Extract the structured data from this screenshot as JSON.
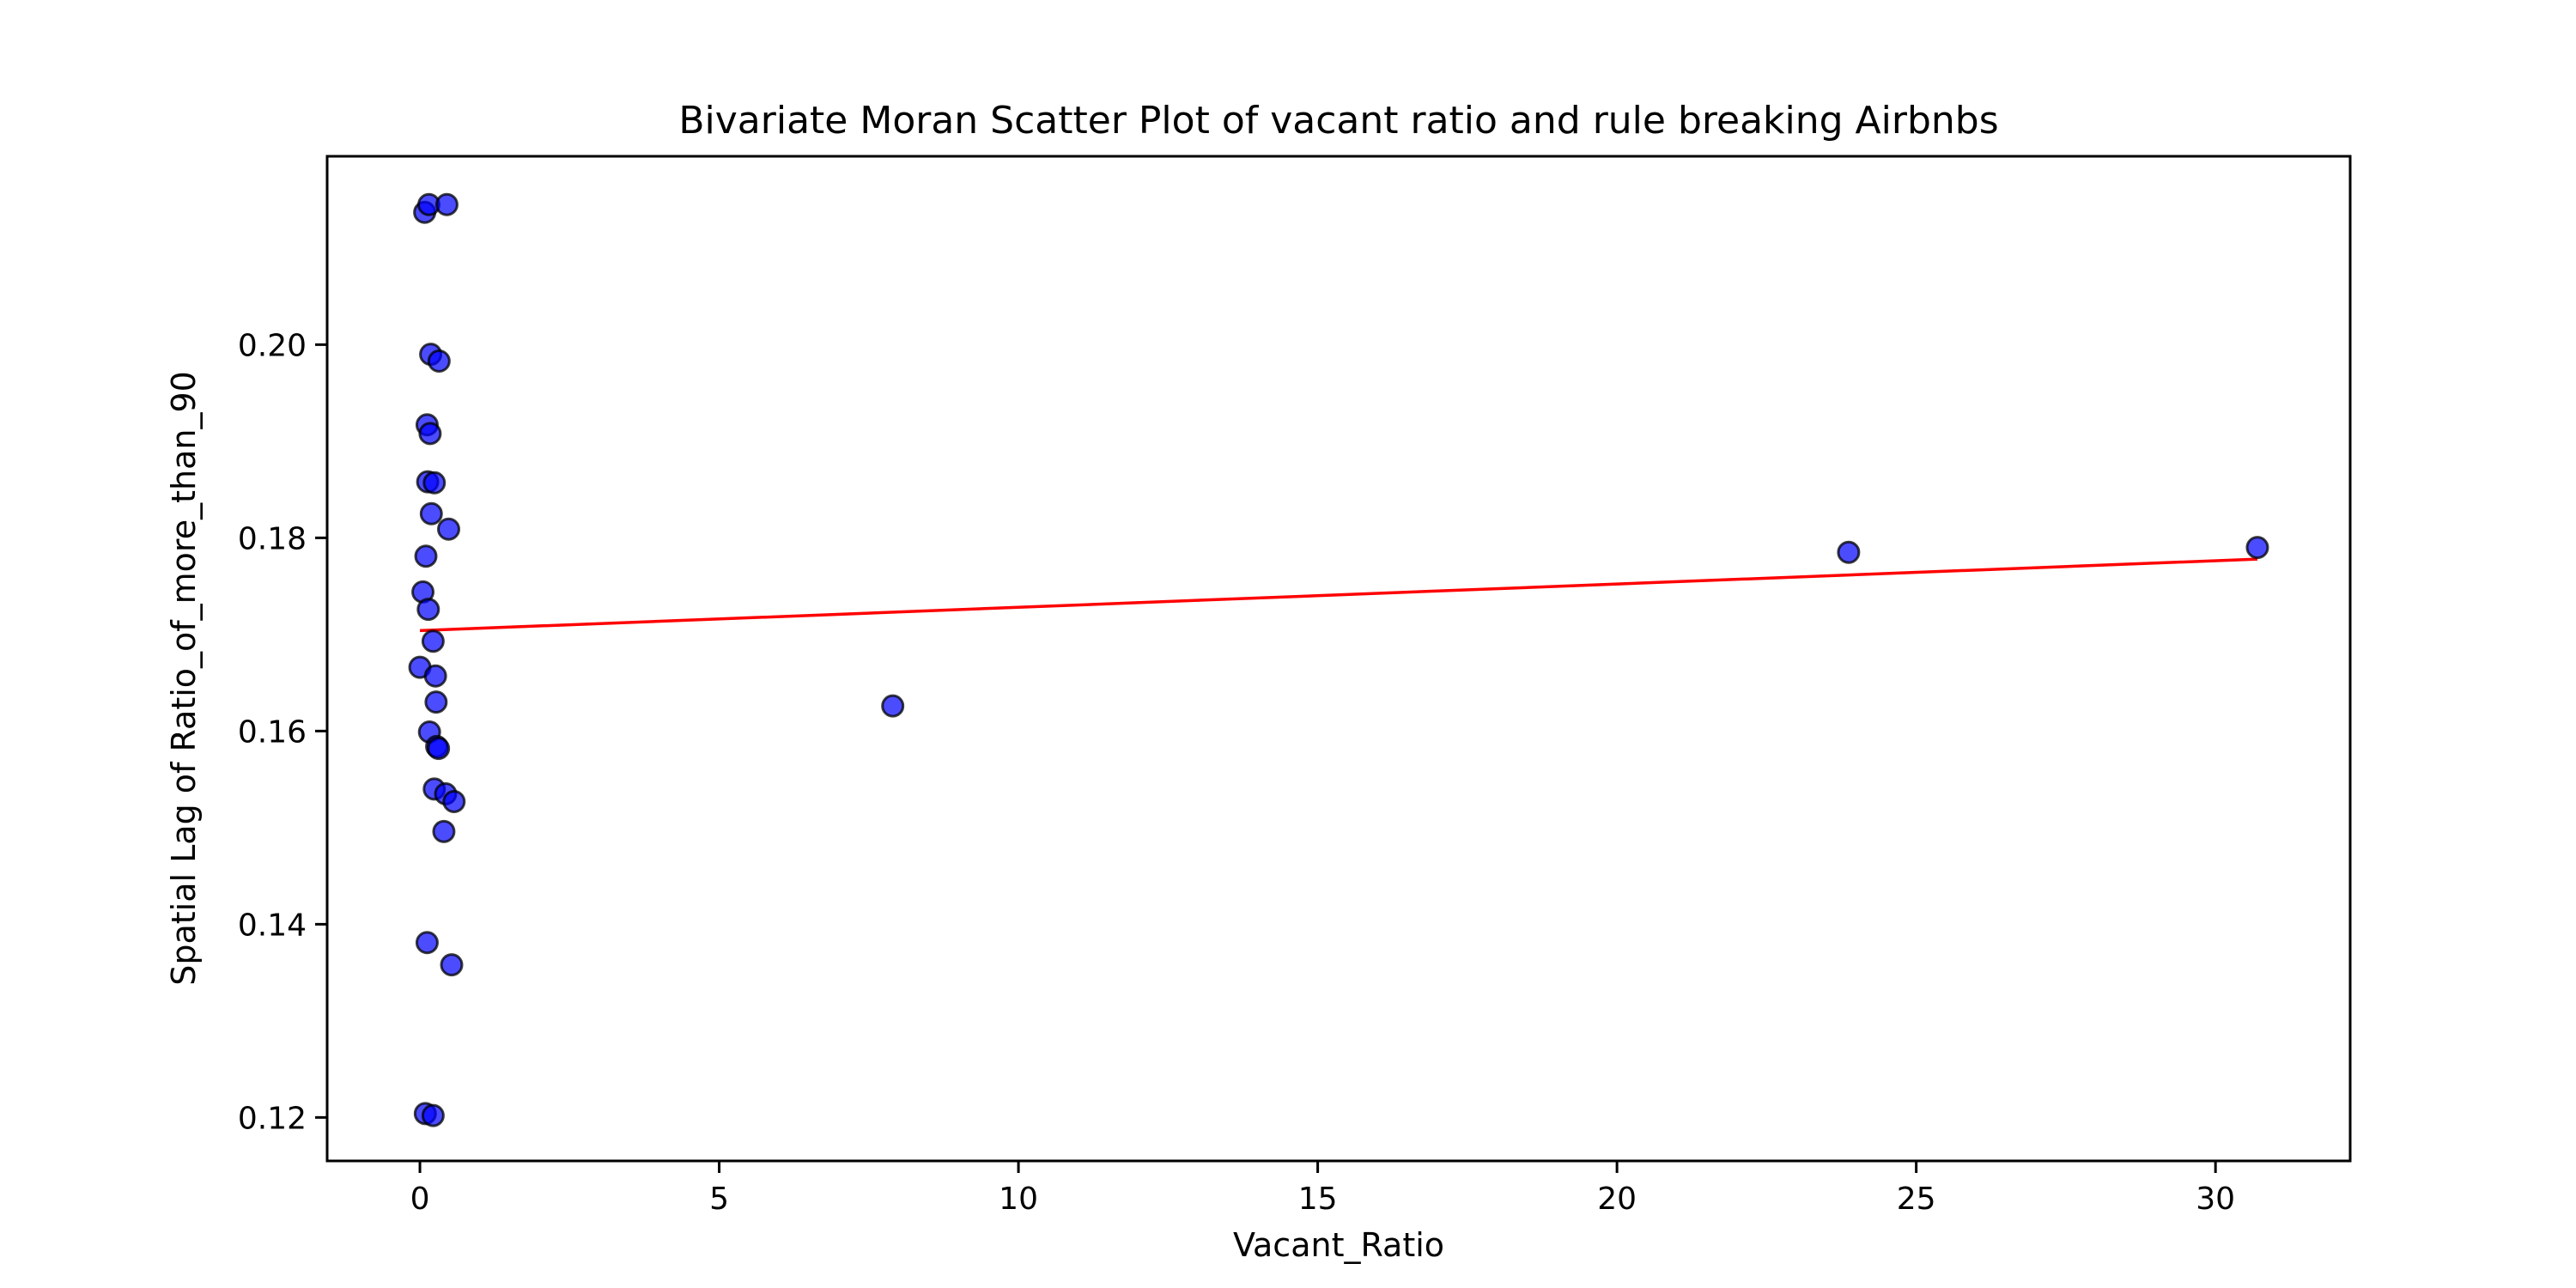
{
  "chart_data": {
    "type": "scatter",
    "title": "Bivariate Moran Scatter Plot of vacant ratio and rule breaking Airbnbs",
    "xlabel": "Vacant_Ratio",
    "ylabel": "Spatial Lag of Ratio_of_more_than_90",
    "xlim": [
      -1.55,
      32.25
    ],
    "ylim": [
      0.1155,
      0.2195
    ],
    "xticks": [
      0,
      5,
      10,
      15,
      20,
      25,
      30
    ],
    "yticks": [
      0.12,
      0.14,
      0.16,
      0.18,
      0.2
    ],
    "ytick_labels": [
      "0.12",
      "0.14",
      "0.16",
      "0.18",
      "0.20"
    ],
    "grid": false,
    "legend": "none",
    "point_color": "#0000ff",
    "point_edge_color": "#000000",
    "line_color": "#ff0000",
    "points": [
      {
        "x": 0.08,
        "y": 0.2137
      },
      {
        "x": 0.15,
        "y": 0.2145
      },
      {
        "x": 0.45,
        "y": 0.2145
      },
      {
        "x": 0.18,
        "y": 0.199
      },
      {
        "x": 0.32,
        "y": 0.1983
      },
      {
        "x": 0.12,
        "y": 0.1917
      },
      {
        "x": 0.17,
        "y": 0.1908
      },
      {
        "x": 0.13,
        "y": 0.1858
      },
      {
        "x": 0.24,
        "y": 0.1857
      },
      {
        "x": 0.19,
        "y": 0.1825
      },
      {
        "x": 0.48,
        "y": 0.1809
      },
      {
        "x": 0.1,
        "y": 0.1781
      },
      {
        "x": 0.05,
        "y": 0.1744
      },
      {
        "x": 0.14,
        "y": 0.1726
      },
      {
        "x": 0.22,
        "y": 0.1693
      },
      {
        "x": 0.0,
        "y": 0.1666
      },
      {
        "x": 0.26,
        "y": 0.1657
      },
      {
        "x": 0.27,
        "y": 0.163
      },
      {
        "x": 0.16,
        "y": 0.1599
      },
      {
        "x": 0.28,
        "y": 0.1584
      },
      {
        "x": 0.31,
        "y": 0.1582
      },
      {
        "x": 0.24,
        "y": 0.154
      },
      {
        "x": 0.43,
        "y": 0.1535
      },
      {
        "x": 0.57,
        "y": 0.1527
      },
      {
        "x": 0.4,
        "y": 0.1496
      },
      {
        "x": 0.12,
        "y": 0.1381
      },
      {
        "x": 0.53,
        "y": 0.1358
      },
      {
        "x": 0.09,
        "y": 0.1204
      },
      {
        "x": 0.22,
        "y": 0.1202
      },
      {
        "x": 7.9,
        "y": 0.1626
      },
      {
        "x": 23.87,
        "y": 0.1785
      },
      {
        "x": 30.7,
        "y": 0.179
      }
    ],
    "regression_line": {
      "x": [
        0.0,
        30.7
      ],
      "y": [
        0.1704,
        0.1778
      ]
    }
  }
}
